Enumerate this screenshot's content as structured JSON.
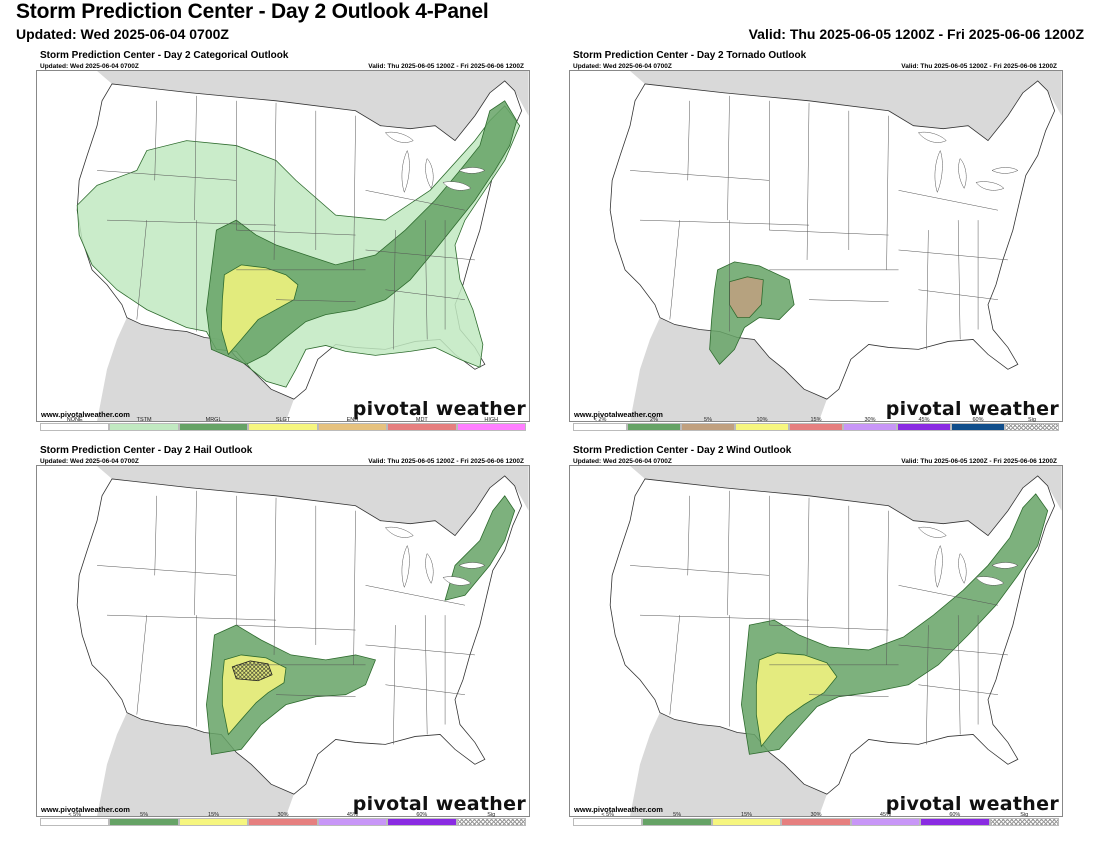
{
  "header": {
    "title": "Storm Prediction Center - Day 2 Outlook 4-Panel",
    "updated": "Updated: Wed 2025-06-04 0700Z",
    "valid": "Valid: Thu 2025-06-05 1200Z - Fri 2025-06-06 1200Z"
  },
  "colors": {
    "tstm": "#c1e9c1",
    "mrgl": "#66a366",
    "slgt": "#f6f67f",
    "enh": "#e6c27f",
    "mdt": "#e67f7f",
    "high": "#ff7fff",
    "tor_10": "#c0a07f",
    "prob_5": "#66a366",
    "prob_15": "#f6f67f",
    "water": "#ffffff",
    "land_outside": "#d9d9d9"
  },
  "panels": [
    {
      "title": "Storm Prediction Center - Day 2 Categorical Outlook",
      "updated": "Updated: Wed 2025-06-04 0700Z",
      "valid": "Valid: Thu 2025-06-05 1200Z - Fri 2025-06-06 1200Z",
      "site": "www.pivotalweather.com",
      "brand": "pivotal weather",
      "legend": [
        {
          "label": "NONE",
          "color": "#ffffff"
        },
        {
          "label": "TSTM",
          "color": "#c1e9c1"
        },
        {
          "label": "MRGL",
          "color": "#66a366"
        },
        {
          "label": "SLGT",
          "color": "#f6f67f"
        },
        {
          "label": "ENH",
          "color": "#e6c27f"
        },
        {
          "label": "MDT",
          "color": "#e67f7f"
        },
        {
          "label": "HIGH",
          "color": "#ff7fff"
        }
      ]
    },
    {
      "title": "Storm Prediction Center - Day 2 Tornado Outlook",
      "updated": "Updated: Wed 2025-06-04 0700Z",
      "valid": "Valid: Thu 2025-06-05 1200Z - Fri 2025-06-06 1200Z",
      "site": "www.pivotalweather.com",
      "brand": "pivotal weather",
      "legend": [
        {
          "label": "< 2%",
          "color": "#ffffff"
        },
        {
          "label": "2%",
          "color": "#66a366"
        },
        {
          "label": "5%",
          "color": "#c0a07f"
        },
        {
          "label": "10%",
          "color": "#f6f67f"
        },
        {
          "label": "15%",
          "color": "#e67f7f"
        },
        {
          "label": "30%",
          "color": "#c896f7"
        },
        {
          "label": "45%",
          "color": "#8a2be2"
        },
        {
          "label": "60%",
          "color": "#104e8b"
        },
        {
          "label": "Sig",
          "color": "hatch"
        }
      ]
    },
    {
      "title": "Storm Prediction Center - Day 2 Hail Outlook",
      "updated": "Updated: Wed 2025-06-04 0700Z",
      "valid": "Valid: Thu 2025-06-05 1200Z - Fri 2025-06-06 1200Z",
      "site": "www.pivotalweather.com",
      "brand": "pivotal weather",
      "legend": [
        {
          "label": "< 5%",
          "color": "#ffffff"
        },
        {
          "label": "5%",
          "color": "#66a366"
        },
        {
          "label": "15%",
          "color": "#f6f67f"
        },
        {
          "label": "30%",
          "color": "#e67f7f"
        },
        {
          "label": "45%",
          "color": "#c896f7"
        },
        {
          "label": "60%",
          "color": "#8a2be2"
        },
        {
          "label": "Sig",
          "color": "hatch"
        }
      ]
    },
    {
      "title": "Storm Prediction Center - Day 2 Wind Outlook",
      "updated": "Updated: Wed 2025-06-04 0700Z",
      "valid": "Valid: Thu 2025-06-05 1200Z - Fri 2025-06-06 1200Z",
      "site": "www.pivotalweather.com",
      "brand": "pivotal weather",
      "legend": [
        {
          "label": "< 5%",
          "color": "#ffffff"
        },
        {
          "label": "5%",
          "color": "#66a366"
        },
        {
          "label": "15%",
          "color": "#f6f67f"
        },
        {
          "label": "30%",
          "color": "#e67f7f"
        },
        {
          "label": "45%",
          "color": "#c896f7"
        },
        {
          "label": "60%",
          "color": "#8a2be2"
        },
        {
          "label": "Sig",
          "color": "hatch"
        }
      ]
    }
  ]
}
